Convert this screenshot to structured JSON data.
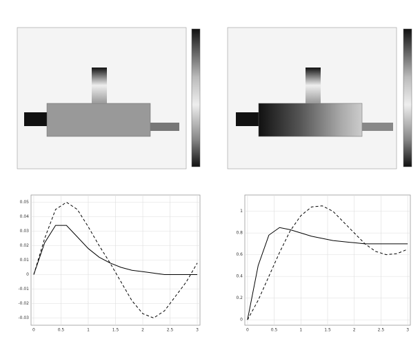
{
  "chart_data": [
    {
      "type": "line",
      "x": [
        0,
        0.2,
        0.4,
        0.6,
        0.8,
        1.0,
        1.2,
        1.4,
        1.6,
        1.8,
        2.0,
        2.2,
        2.4,
        2.6,
        2.8,
        3.0
      ],
      "series": [
        {
          "style": "solid",
          "color": "#000000",
          "values": [
            0,
            0.022,
            0.034,
            0.034,
            0.026,
            0.018,
            0.012,
            0.008,
            0.005,
            0.003,
            0.002,
            0.001,
            0,
            0,
            0,
            0
          ]
        },
        {
          "style": "dashed",
          "color": "#000000",
          "values": [
            0,
            0.025,
            0.045,
            0.05,
            0.045,
            0.033,
            0.02,
            0.008,
            -0.005,
            -0.018,
            -0.027,
            -0.03,
            -0.025,
            -0.015,
            -0.005,
            0.008
          ]
        }
      ],
      "xlim": [
        -0.05,
        3.05
      ],
      "xticks": [
        0,
        0.5,
        1,
        1.5,
        2,
        2.5,
        3
      ],
      "ylim": [
        -0.035,
        0.055
      ],
      "yticks": [
        -0.03,
        -0.02,
        -0.01,
        0,
        0.01,
        0.02,
        0.03,
        0.04,
        0.05
      ],
      "grid": true
    },
    {
      "type": "line",
      "x": [
        0,
        0.2,
        0.4,
        0.6,
        0.8,
        1.0,
        1.2,
        1.4,
        1.6,
        1.8,
        2.0,
        2.2,
        2.4,
        2.6,
        2.8,
        3.0
      ],
      "series": [
        {
          "style": "solid",
          "color": "#000000",
          "values": [
            0,
            0.5,
            0.78,
            0.85,
            0.83,
            0.8,
            0.77,
            0.75,
            0.73,
            0.72,
            0.71,
            0.7,
            0.7,
            0.7,
            0.7,
            0.7
          ]
        },
        {
          "style": "dashed",
          "color": "#000000",
          "values": [
            0,
            0.18,
            0.4,
            0.62,
            0.82,
            0.96,
            1.04,
            1.05,
            1.0,
            0.9,
            0.8,
            0.7,
            0.63,
            0.6,
            0.61,
            0.65
          ]
        }
      ],
      "xlim": [
        -0.05,
        3.05
      ],
      "xticks": [
        0,
        0.5,
        1,
        1.5,
        2,
        2.5,
        3
      ],
      "ylim": [
        -0.05,
        1.15
      ],
      "yticks": [
        0,
        0.2,
        0.4,
        0.6,
        0.8,
        1
      ],
      "grid": true
    }
  ]
}
